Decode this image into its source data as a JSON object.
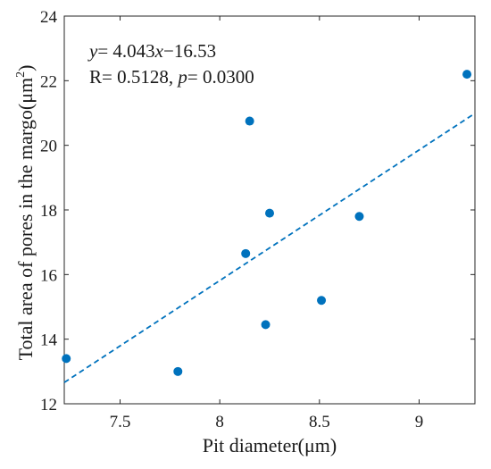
{
  "chart_data": {
    "type": "scatter",
    "xlabel": "Pit diameter(μm)",
    "ylabel_base": "Total area of pores in the margo(μm",
    "ylabel_sup": "2",
    "ylabel_tail": ")",
    "xlim": [
      7.22,
      9.28
    ],
    "ylim": [
      12,
      24
    ],
    "xticks": [
      7.5,
      8,
      8.5,
      9
    ],
    "xtick_labels": [
      "7.5",
      "8",
      "8.5",
      "9"
    ],
    "yticks": [
      12,
      14,
      16,
      18,
      20,
      22,
      24
    ],
    "ytick_labels": [
      "12",
      "14",
      "16",
      "18",
      "20",
      "22",
      "24"
    ],
    "grid": false,
    "point_color": "#0072BD",
    "line_color": "#0072BD",
    "points": [
      {
        "x": 7.23,
        "y": 13.4
      },
      {
        "x": 7.79,
        "y": 13.0
      },
      {
        "x": 8.13,
        "y": 16.65
      },
      {
        "x": 8.15,
        "y": 20.75
      },
      {
        "x": 8.23,
        "y": 14.45
      },
      {
        "x": 8.25,
        "y": 17.9
      },
      {
        "x": 8.51,
        "y": 15.2
      },
      {
        "x": 8.7,
        "y": 17.8
      },
      {
        "x": 9.24,
        "y": 22.2
      }
    ],
    "fit": {
      "slope": 4.043,
      "intercept": -16.53,
      "x_start": 7.22,
      "x_end": 9.28,
      "style": "dashed"
    },
    "annotation": {
      "eq_var_y": "y",
      "eq_mid": "= 4.043",
      "eq_var_x": "x",
      "eq_tail": "−16.53",
      "r_text": "R= 0.5128, ",
      "p_var": "p",
      "p_tail": "= 0.0300"
    }
  }
}
